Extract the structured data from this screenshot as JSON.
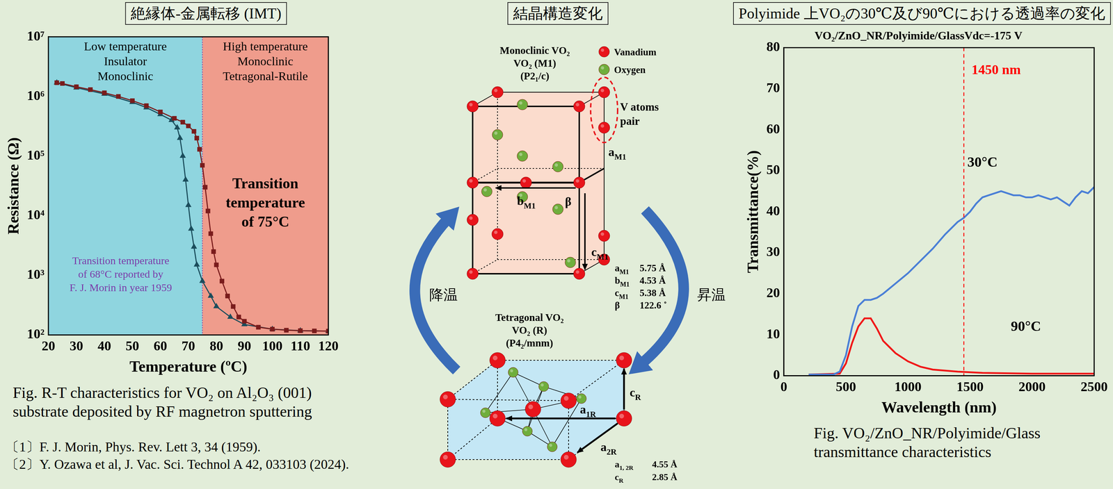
{
  "header": {
    "left": "絶縁体-金属転移 (IMT)",
    "middle": "結晶構造変化",
    "right": "Polyimide 上VO₂の30℃及び90℃における透過率の変化"
  },
  "chart_data": [
    {
      "type": "line",
      "log": "y",
      "grid": false,
      "x_label": "Temperature (ºC)",
      "y_label": "Resistance (Ω)",
      "xlim": [
        20,
        120
      ],
      "xticks": [
        20,
        30,
        40,
        50,
        60,
        70,
        80,
        90,
        100,
        110,
        120
      ],
      "ylim": [
        100,
        10000000
      ],
      "yticks": [
        {
          "value": 100,
          "label": "10²"
        },
        {
          "value": 1000,
          "label": "10³"
        },
        {
          "value": 10000,
          "label": "10⁴"
        },
        {
          "value": 100000,
          "label": "10⁵"
        },
        {
          "value": 1000000,
          "label": "10⁶"
        },
        {
          "value": 10000000,
          "label": "10⁷"
        }
      ],
      "regions": [
        {
          "from": 20,
          "to": 75,
          "color": "#8fd5df",
          "label": "Low temperature\nInsulator\nMonoclinic"
        },
        {
          "from": 75,
          "to": 120,
          "color": "#ef9c8c",
          "label": "High temperature\nMonoclinic\nTetragonal-Rutile"
        }
      ],
      "annotations": [
        {
          "text": "Transition\ntemperature\nof 75°C",
          "color": "#000000"
        },
        {
          "text": "Transition temperature\nof 68°C reported by\nF. J. Morin in year 1959",
          "color": "#7b3aa8"
        }
      ],
      "series": [
        {
          "color": "#7a1c1c",
          "marker": "square",
          "line_style": "solid",
          "x": [
            23,
            25,
            30,
            35,
            40,
            45,
            50,
            55,
            60,
            65,
            68,
            70,
            72,
            73,
            74,
            75,
            76,
            77,
            78,
            79,
            80,
            82,
            84,
            86,
            88,
            90,
            95,
            100,
            105,
            110,
            115,
            120
          ],
          "values": [
            1700000,
            1650000,
            1450000,
            1300000,
            1150000,
            1000000,
            850000,
            700000,
            550000,
            430000,
            370000,
            320000,
            260000,
            200000,
            130000,
            70000,
            30000,
            12000,
            5000,
            2500,
            1500,
            800,
            450,
            300,
            200,
            170,
            135,
            125,
            120,
            118,
            117,
            116
          ]
        },
        {
          "color": "#1b4d5c",
          "marker": "triangle",
          "line_style": "solid",
          "x": [
            23,
            30,
            40,
            50,
            55,
            60,
            64,
            66,
            67,
            68,
            69,
            70,
            71,
            72,
            73,
            75,
            78,
            80,
            85,
            90,
            100,
            110,
            120
          ],
          "values": [
            1700000,
            1400000,
            1100000,
            800000,
            650000,
            500000,
            400000,
            300000,
            200000,
            100000,
            40000,
            15000,
            6000,
            3000,
            1500,
            800,
            450,
            300,
            200,
            150,
            125,
            118,
            116
          ]
        }
      ],
      "caption": "Fig. R-T characteristics for VO₂ on Al₂O₃ (001)\nsubstrate deposited by RF magnetron sputtering"
    },
    {
      "type": "line",
      "grid": false,
      "title": "VO₂/ZnO_NR/Polyimide/GlassVdc=-175 V",
      "x_label": "Wavelength (nm)",
      "y_label": "Transmittance(%)",
      "xlim": [
        0,
        2500
      ],
      "xticks": [
        0,
        500,
        1000,
        1500,
        2000,
        2500
      ],
      "ylim": [
        0,
        80
      ],
      "yticks": [
        0,
        10,
        20,
        30,
        40,
        50,
        60,
        70,
        80
      ],
      "vline": {
        "x": 1450,
        "label": "1450 nm",
        "color": "#ff0000",
        "line_style": "dashed"
      },
      "series": [
        {
          "name": "30°C",
          "color": "#4a7fd6",
          "marker": "none",
          "line_style": "solid",
          "x": [
            200,
            400,
            450,
            500,
            550,
            600,
            650,
            700,
            750,
            800,
            900,
            1000,
            1100,
            1200,
            1300,
            1400,
            1450,
            1500,
            1550,
            1600,
            1650,
            1700,
            1750,
            1800,
            1850,
            1900,
            1950,
            2000,
            2050,
            2100,
            2150,
            2200,
            2250,
            2300,
            2350,
            2400,
            2450,
            2500
          ],
          "values": [
            0.3,
            0.3,
            1,
            5,
            12,
            17,
            18.5,
            18.5,
            19,
            20,
            22.5,
            25,
            28,
            31,
            34.5,
            37.5,
            38.5,
            40,
            42,
            43.5,
            44,
            44.5,
            45,
            44.5,
            44,
            44,
            43.5,
            43.5,
            44,
            43.5,
            43,
            43.5,
            42.5,
            41.5,
            43.5,
            45,
            44.5,
            46
          ]
        },
        {
          "name": "90°C",
          "color": "#f01818",
          "marker": "none",
          "line_style": "solid",
          "x": [
            200,
            450,
            500,
            550,
            600,
            650,
            700,
            750,
            800,
            850,
            900,
            1000,
            1100,
            1200,
            1400,
            1600,
            2000,
            2500
          ],
          "values": [
            0.3,
            0.5,
            3,
            8,
            12,
            14,
            14,
            11.5,
            8.5,
            7,
            5.5,
            3.5,
            2.2,
            1.5,
            1,
            0.7,
            0.5,
            0.5
          ]
        }
      ],
      "caption": "Fig. VO₂/ZnO_NR/Polyimide/Glass\ntransmittance characteristics"
    }
  ],
  "crystal_diagram": {
    "monoclinic": {
      "title": [
        "Monoclinic VO₂",
        "VO₂ (M1)",
        "(P2₁/c)"
      ],
      "legend": [
        {
          "label": "Vanadium",
          "color": "#e8141b"
        },
        {
          "label": "Oxygen",
          "color": "#6fae3c"
        }
      ],
      "pair_label": [
        "V atoms",
        "pair"
      ],
      "lattice": [
        {
          "symbol": "a",
          "sub": "M1",
          "value": 5.75,
          "unit": "Å"
        },
        {
          "symbol": "b",
          "sub": "M1",
          "value": 4.53,
          "unit": "Å"
        },
        {
          "symbol": "c",
          "sub": "M1",
          "value": 5.38,
          "unit": "Å"
        },
        {
          "symbol": "β",
          "value": 122.6,
          "unit": "˚"
        }
      ]
    },
    "tetragonal": {
      "title": [
        "Tetragonal VO₂",
        "VO₂ (R)",
        "(P4₂/mnm)"
      ],
      "axis_labels": [
        {
          "symbol": "c",
          "sub": "R"
        },
        {
          "symbol": "a",
          "sub": "1R"
        },
        {
          "symbol": "a",
          "sub": "2R"
        }
      ],
      "lattice": [
        {
          "symbol": "a",
          "sub": "1, 2R",
          "value": 4.55,
          "unit": "Å"
        },
        {
          "symbol": "c",
          "sub": "R",
          "value": 2.85,
          "unit": "Å"
        }
      ]
    },
    "cooling": "降温",
    "heating": "昇温"
  },
  "references": [
    "〔1〕F. J. Morin, Phys. Rev. Lett 3, 34 (1959).",
    "〔2〕Y. Ozawa et al, J. Vac. Sci. Technol A 42, 033103 (2024)."
  ]
}
